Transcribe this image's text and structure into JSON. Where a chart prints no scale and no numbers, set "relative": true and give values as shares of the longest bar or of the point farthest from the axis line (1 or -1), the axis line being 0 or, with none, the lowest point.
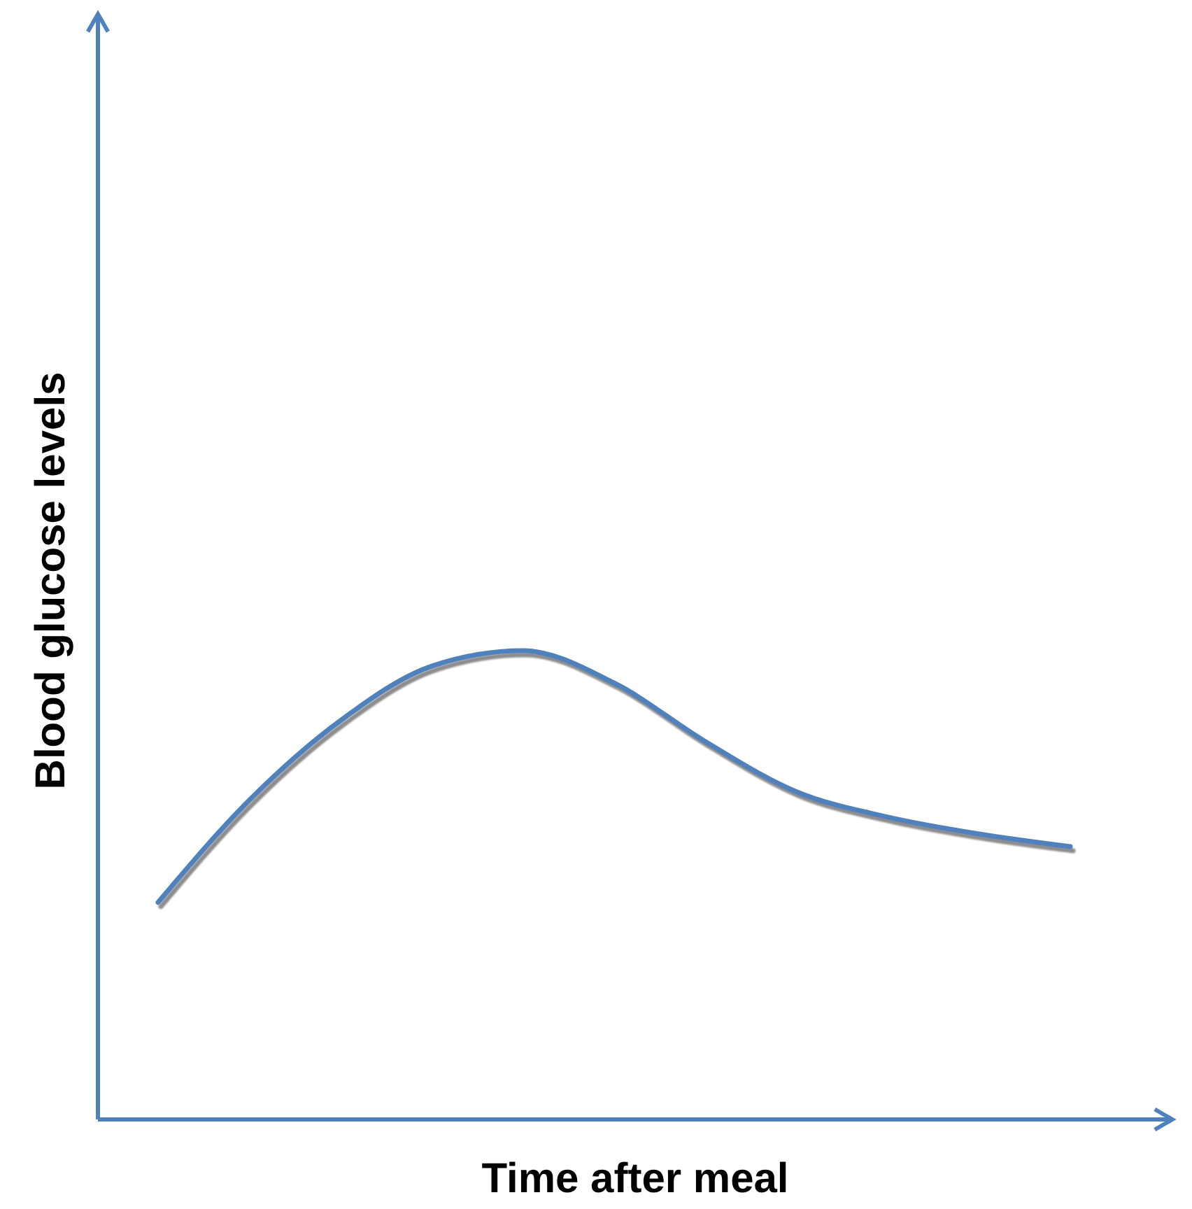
{
  "chart_data": {
    "type": "line",
    "xlabel": "Time after meal",
    "ylabel": "Blood glucose levels",
    "relative": true,
    "categories": [
      null,
      null,
      null,
      null,
      null,
      null,
      null,
      null,
      null,
      null,
      null
    ],
    "series": [
      {
        "color": "#4f81bd",
        "values": [
          0.463,
          0.681,
          0.851,
          0.967,
          1.0,
          0.931,
          0.806,
          0.699,
          0.645,
          0.609,
          0.582
        ]
      }
    ]
  }
}
